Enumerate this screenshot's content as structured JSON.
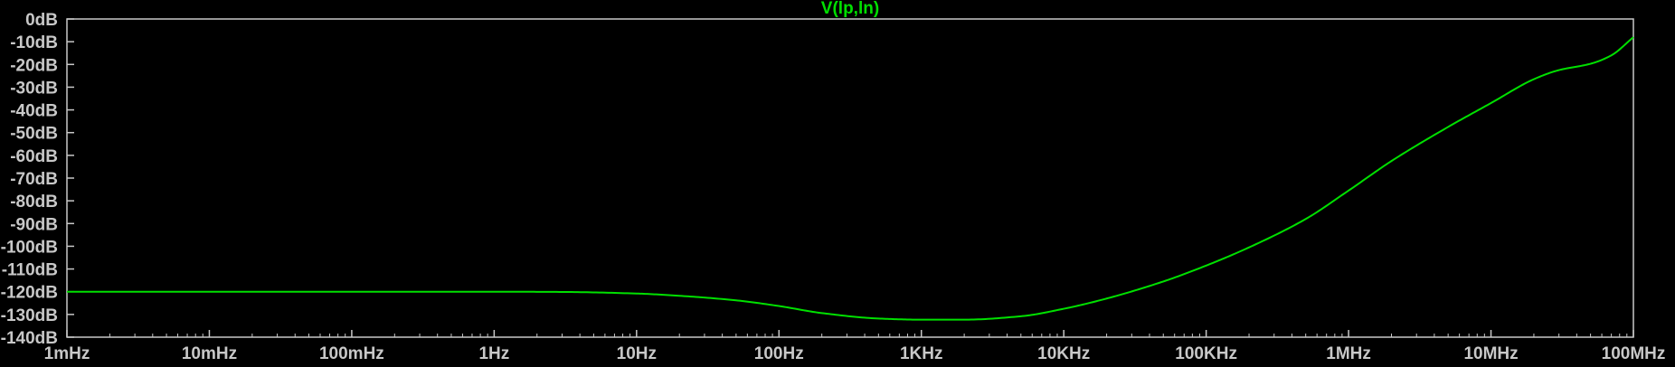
{
  "colors": {
    "background": "#000000",
    "frame": "#c8c8c8",
    "trace": "#00e000",
    "tick_text": "#c8c8c8"
  },
  "chart_data": {
    "type": "line",
    "title": "V(lp,ln)",
    "xlabel": "",
    "ylabel": "",
    "x_scale": "log",
    "grid": false,
    "xlim": [
      0.001,
      100000000
    ],
    "ylim": [
      -140,
      0
    ],
    "x_ticks": [
      {
        "value": 0.001,
        "label": "1mHz"
      },
      {
        "value": 0.01,
        "label": "10mHz"
      },
      {
        "value": 0.1,
        "label": "100mHz"
      },
      {
        "value": 1,
        "label": "1Hz"
      },
      {
        "value": 10,
        "label": "10Hz"
      },
      {
        "value": 100,
        "label": "100Hz"
      },
      {
        "value": 1000,
        "label": "1KHz"
      },
      {
        "value": 10000,
        "label": "10KHz"
      },
      {
        "value": 100000,
        "label": "100KHz"
      },
      {
        "value": 1000000,
        "label": "1MHz"
      },
      {
        "value": 10000000,
        "label": "10MHz"
      },
      {
        "value": 100000000,
        "label": "100MHz"
      }
    ],
    "y_ticks": [
      {
        "value": 0,
        "label": "0dB"
      },
      {
        "value": -10,
        "label": "-10dB"
      },
      {
        "value": -20,
        "label": "-20dB"
      },
      {
        "value": -30,
        "label": "-30dB"
      },
      {
        "value": -40,
        "label": "-40dB"
      },
      {
        "value": -50,
        "label": "-50dB"
      },
      {
        "value": -60,
        "label": "-60dB"
      },
      {
        "value": -70,
        "label": "-70dB"
      },
      {
        "value": -80,
        "label": "-80dB"
      },
      {
        "value": -90,
        "label": "-90dB"
      },
      {
        "value": -100,
        "label": "-100dB"
      },
      {
        "value": -110,
        "label": "-110dB"
      },
      {
        "value": -120,
        "label": "-120dB"
      },
      {
        "value": -130,
        "label": "-130dB"
      },
      {
        "value": -140,
        "label": "-140dB"
      }
    ],
    "series": [
      {
        "name": "V(lp,ln)",
        "x": [
          0.001,
          0.01,
          0.1,
          1,
          3,
          10,
          20,
          50,
          100,
          200,
          500,
          1000,
          2000,
          5000,
          10000,
          20000,
          50000,
          100000,
          200000,
          500000,
          1000000,
          2000000,
          5000000,
          10000000,
          20000000,
          30000000,
          50000000,
          70000000,
          100000000
        ],
        "y": [
          -120,
          -120,
          -120,
          -120,
          -120.1,
          -120.8,
          -121.8,
          -123.8,
          -126.3,
          -129.4,
          -131.8,
          -132.3,
          -132.3,
          -130.8,
          -127.5,
          -123,
          -115.5,
          -108.5,
          -100.5,
          -88,
          -75.5,
          -62.5,
          -47.5,
          -37,
          -26.5,
          -22.5,
          -19.7,
          -16,
          -8
        ]
      }
    ]
  }
}
